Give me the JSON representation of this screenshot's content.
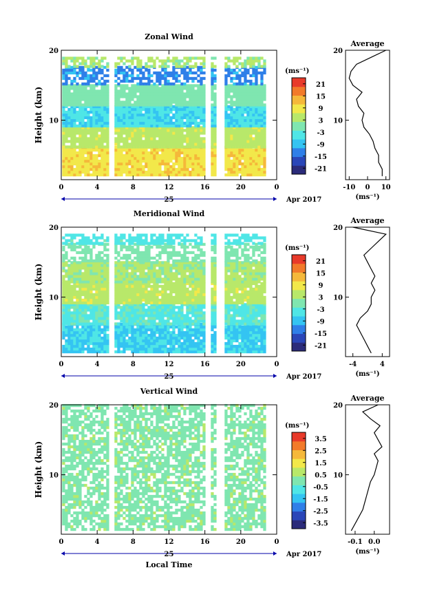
{
  "chart_data": [
    {
      "type": "heatmap",
      "title": "Zonal Wind",
      "ylabel": "Height (km)",
      "xlim": [
        0,
        24
      ],
      "ylim": [
        1.5,
        20
      ],
      "x_ticks": [
        "0",
        "4",
        "8",
        "12",
        "16",
        "20",
        "0"
      ],
      "y_ticks": [
        "10",
        "20"
      ],
      "date_label": "25",
      "date_suffix": "Apr 2017",
      "colorbar": {
        "unit": "(ms⁻¹)",
        "ticks": [
          "21",
          "15",
          "9",
          "3",
          "-3",
          "-9",
          "-15",
          "-21"
        ],
        "range": [
          -24,
          24
        ]
      },
      "average_panel": {
        "title": "Average",
        "unit": "(ms⁻¹)",
        "xlim": [
          -12,
          12
        ],
        "x_ticks": [
          "-10",
          "0",
          "10"
        ],
        "profile": [
          [
            8,
            2
          ],
          [
            8,
            3
          ],
          [
            6,
            4
          ],
          [
            6,
            5
          ],
          [
            4,
            6
          ],
          [
            3,
            7
          ],
          [
            1,
            8
          ],
          [
            -2,
            9
          ],
          [
            -3,
            10
          ],
          [
            -2,
            11
          ],
          [
            -5,
            12
          ],
          [
            -6,
            13
          ],
          [
            -3,
            14
          ],
          [
            -8,
            15
          ],
          [
            -10,
            16
          ],
          [
            -9,
            17
          ],
          [
            -6,
            18
          ],
          [
            2,
            19
          ],
          [
            10,
            20
          ]
        ]
      },
      "rows": [
        {
          "y": [
            2,
            6
          ],
          "value": 10
        },
        {
          "y": [
            6,
            9
          ],
          "value": 5
        },
        {
          "y": [
            9,
            12
          ],
          "value": -6
        },
        {
          "y": [
            12,
            15
          ],
          "value": 0
        },
        {
          "y": [
            15,
            17.5
          ],
          "value": -12
        },
        {
          "y": [
            17.5,
            19
          ],
          "value": 3
        }
      ],
      "gaps": [
        5.5,
        16.3,
        17.6
      ]
    },
    {
      "type": "heatmap",
      "title": "Meridional Wind",
      "ylabel": "Height (km)",
      "xlim": [
        0,
        24
      ],
      "ylim": [
        1.5,
        20
      ],
      "x_ticks": [
        "0",
        "4",
        "8",
        "12",
        "16",
        "20",
        "0"
      ],
      "y_ticks": [
        "10",
        "20"
      ],
      "date_label": "25",
      "date_suffix": "Apr 2017",
      "colorbar": {
        "unit": "(ms⁻¹)",
        "ticks": [
          "21",
          "15",
          "9",
          "3",
          "-3",
          "-9",
          "-15",
          "-21"
        ],
        "range": [
          -24,
          24
        ]
      },
      "average_panel": {
        "title": "Average",
        "unit": "(ms⁻¹)",
        "xlim": [
          -6,
          6
        ],
        "x_ticks": [
          "-4",
          "4"
        ],
        "profile": [
          [
            1,
            2
          ],
          [
            0,
            3
          ],
          [
            -1,
            4
          ],
          [
            -2,
            5
          ],
          [
            -3,
            6
          ],
          [
            -2,
            7
          ],
          [
            0,
            8
          ],
          [
            1,
            9
          ],
          [
            1,
            10
          ],
          [
            2,
            11
          ],
          [
            1,
            12
          ],
          [
            2,
            13
          ],
          [
            1,
            14
          ],
          [
            0,
            15
          ],
          [
            -1,
            16
          ],
          [
            1,
            17
          ],
          [
            3,
            18
          ],
          [
            5,
            19
          ],
          [
            -4,
            20
          ]
        ]
      },
      "rows": [
        {
          "y": [
            2,
            6
          ],
          "value": -7
        },
        {
          "y": [
            6,
            9
          ],
          "value": -3
        },
        {
          "y": [
            9,
            12
          ],
          "value": 5
        },
        {
          "y": [
            12,
            15
          ],
          "value": 3
        },
        {
          "y": [
            15,
            17.5
          ],
          "value": 0
        },
        {
          "y": [
            17.5,
            19
          ],
          "value": -4
        }
      ],
      "gaps": [
        5.5,
        16.3,
        17.6
      ]
    },
    {
      "type": "heatmap",
      "title": "Vertical Wind",
      "ylabel": "Height (km)",
      "xlabel": "Local Time",
      "xlim": [
        0,
        24
      ],
      "ylim": [
        1.5,
        20
      ],
      "x_ticks": [
        "0",
        "4",
        "8",
        "12",
        "16",
        "20",
        "0"
      ],
      "y_ticks": [
        "10",
        "20"
      ],
      "date_label": "25",
      "date_suffix": "Apr 2017",
      "colorbar": {
        "unit": "(ms⁻¹)",
        "ticks": [
          "3.5",
          "2.5",
          "1.5",
          "0.5",
          "-0.5",
          "-1.5",
          "-2.5",
          "-3.5"
        ],
        "range": [
          -4,
          4
        ]
      },
      "average_panel": {
        "title": "Average",
        "unit": "(ms⁻¹)",
        "xlim": [
          -0.15,
          0.08
        ],
        "x_ticks": [
          "-0.1",
          "0.0"
        ],
        "profile": [
          [
            -0.12,
            2
          ],
          [
            -0.1,
            3
          ],
          [
            -0.08,
            4
          ],
          [
            -0.06,
            5
          ],
          [
            -0.05,
            6
          ],
          [
            -0.04,
            7
          ],
          [
            -0.03,
            8
          ],
          [
            -0.02,
            9
          ],
          [
            0.0,
            10
          ],
          [
            0.01,
            11
          ],
          [
            0.02,
            12
          ],
          [
            0.0,
            13
          ],
          [
            0.04,
            14
          ],
          [
            0.02,
            15
          ],
          [
            0.0,
            16
          ],
          [
            0.03,
            17
          ],
          [
            -0.02,
            18
          ],
          [
            -0.06,
            19
          ],
          [
            0.02,
            20
          ]
        ]
      },
      "rows": [
        {
          "y": [
            2,
            20
          ],
          "value": 0.1
        }
      ],
      "gaps": [
        5.5,
        16.3,
        17.6
      ]
    }
  ]
}
